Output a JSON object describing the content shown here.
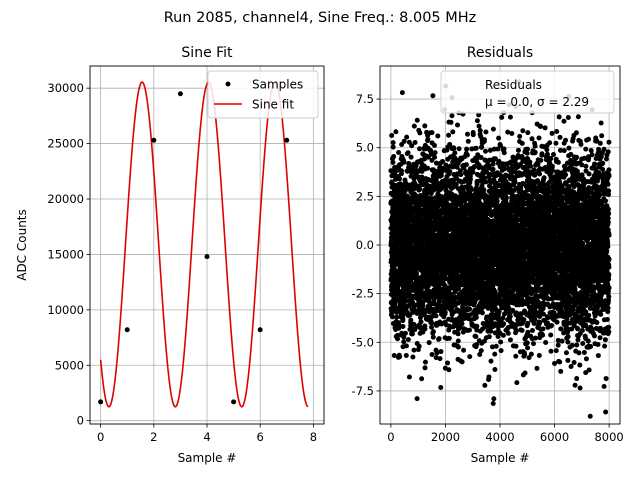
{
  "figure": {
    "suptitle": "Run 2085, channel4, Sine Freq.: 8.005 MHz"
  },
  "chart_data": [
    {
      "type": "line",
      "title": "Sine Fit",
      "xlabel": "Sample #",
      "ylabel": "ADC Counts",
      "xlim": [
        -0.4,
        8.4
      ],
      "ylim": [
        -300,
        32000
      ],
      "xticks": [
        0,
        2,
        4,
        6,
        8
      ],
      "yticks": [
        0,
        5000,
        10000,
        15000,
        20000,
        25000,
        30000
      ],
      "grid": true,
      "legend_position": "top-right",
      "series": [
        {
          "name": "Samples",
          "kind": "scatter",
          "color": "#000000",
          "x": [
            0,
            1,
            2,
            3,
            4,
            5,
            6,
            7
          ],
          "y": [
            1700,
            8200,
            25300,
            29500,
            14800,
            1700,
            8200,
            25300
          ]
        },
        {
          "name": "Sine fit",
          "kind": "line",
          "color": "#e00000",
          "function": {
            "offset": 15900,
            "amplitude": 14650,
            "frequency_cycles_per_sample": 0.4003,
            "phase_rad": -2.351
          },
          "x_range": [
            0,
            7.8
          ]
        }
      ]
    },
    {
      "type": "scatter",
      "title": "Residuals",
      "xlabel": "Sample #",
      "ylabel": "",
      "xlim": [
        -400,
        8400
      ],
      "ylim": [
        -9.2,
        9.2
      ],
      "xticks": [
        0,
        2000,
        4000,
        6000,
        8000
      ],
      "yticks": [
        -7.5,
        -5.0,
        -2.5,
        0.0,
        2.5,
        5.0,
        7.5
      ],
      "grid": true,
      "legend_position": "top-right",
      "legend_label": "Residuals",
      "legend_stats": "μ = 0.0, σ = 2.29",
      "series": [
        {
          "name": "Residuals",
          "color": "#000000",
          "n_points": 8000,
          "mean": 0.0,
          "std": 2.29,
          "x_range": [
            0,
            8000
          ]
        }
      ]
    }
  ]
}
